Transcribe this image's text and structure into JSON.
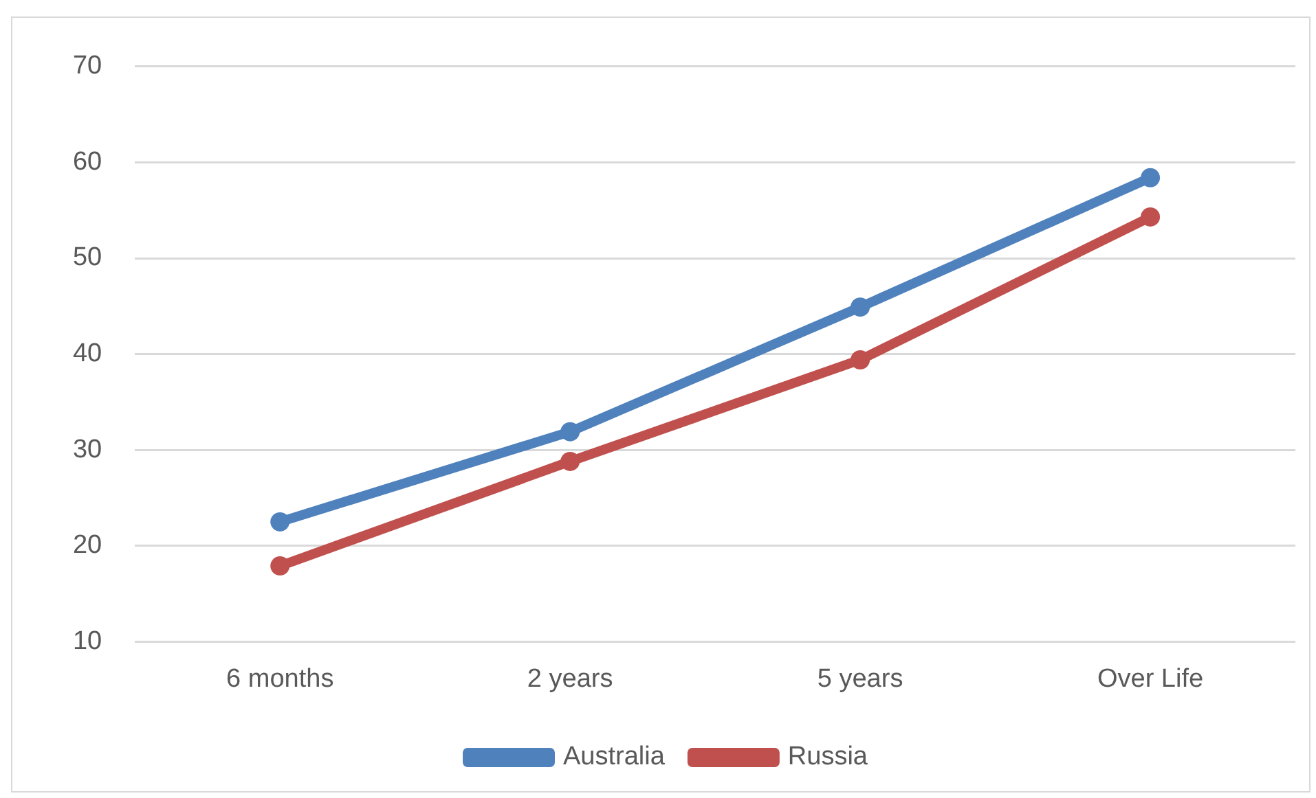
{
  "chart_data": {
    "type": "line",
    "categories": [
      "6 months",
      "2 years",
      "5 years",
      "Over Life"
    ],
    "series": [
      {
        "name": "Australia",
        "color": "#4f81bd",
        "values": [
          22.5,
          31.9,
          44.9,
          58.4
        ]
      },
      {
        "name": "Russia",
        "color": "#c0504d",
        "values": [
          17.9,
          28.8,
          39.4,
          54.3
        ]
      }
    ],
    "ylim": [
      10,
      70
    ],
    "yticks": [
      10,
      20,
      30,
      40,
      50,
      60,
      70
    ],
    "grid": "y",
    "legend": "bottom",
    "marker": "circle",
    "line_style": "solid"
  }
}
